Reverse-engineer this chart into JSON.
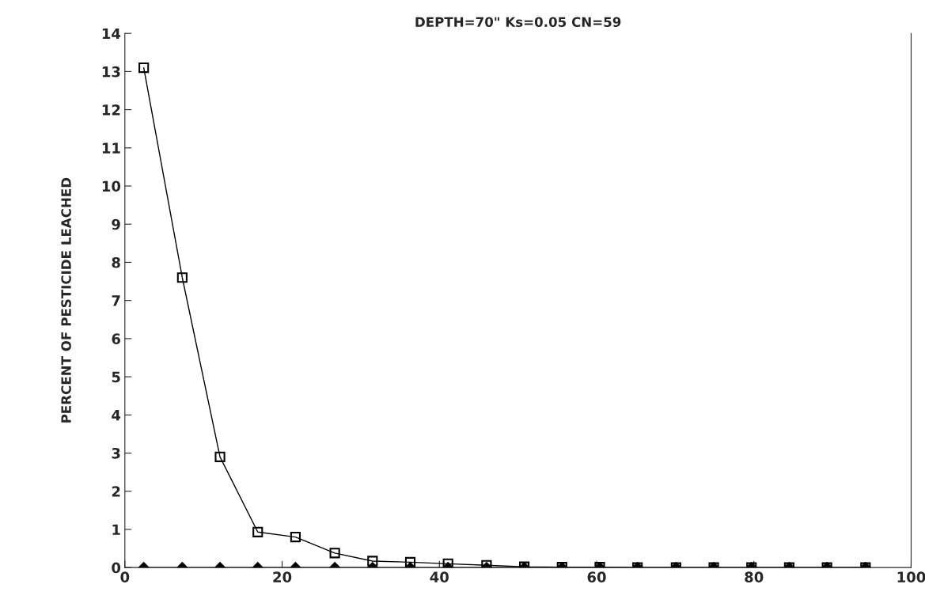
{
  "chart_data": {
    "type": "line",
    "title": "DEPTH=70\" Ks=0.05 CN=59",
    "ylabel": "PERCENT OF PESTICIDE LEACHED",
    "x": [
      2.4,
      7.3,
      12.1,
      16.9,
      21.7,
      26.7,
      31.5,
      36.3,
      41.1,
      46.0,
      50.8,
      55.6,
      60.4,
      65.2,
      70.1,
      74.9,
      79.7,
      84.5,
      89.3,
      94.2
    ],
    "series": [
      {
        "color": "#000000",
        "marker": "square",
        "values": [
          13.1,
          7.6,
          2.9,
          0.93,
          0.8,
          0.38,
          0.17,
          0.14,
          0.1,
          0.06,
          0.02,
          0.01,
          0.01,
          0,
          0,
          0,
          0,
          0,
          0,
          0
        ]
      },
      {
        "color": "#000000",
        "marker": "diamond",
        "values": [
          0,
          0,
          0,
          0,
          0,
          0,
          0,
          0,
          0,
          0,
          0,
          0,
          0,
          0,
          0,
          0,
          0,
          0,
          0,
          0
        ]
      }
    ],
    "xlim": [
      0,
      100
    ],
    "xticks": [
      0,
      20,
      40,
      60,
      80,
      100
    ],
    "ylim": [
      0,
      14
    ],
    "yticks": [
      0,
      1,
      2,
      3,
      4,
      5,
      6,
      7,
      8,
      9,
      10,
      11,
      12,
      13,
      14
    ],
    "grid": false,
    "legend": false,
    "line_style": "solid"
  }
}
